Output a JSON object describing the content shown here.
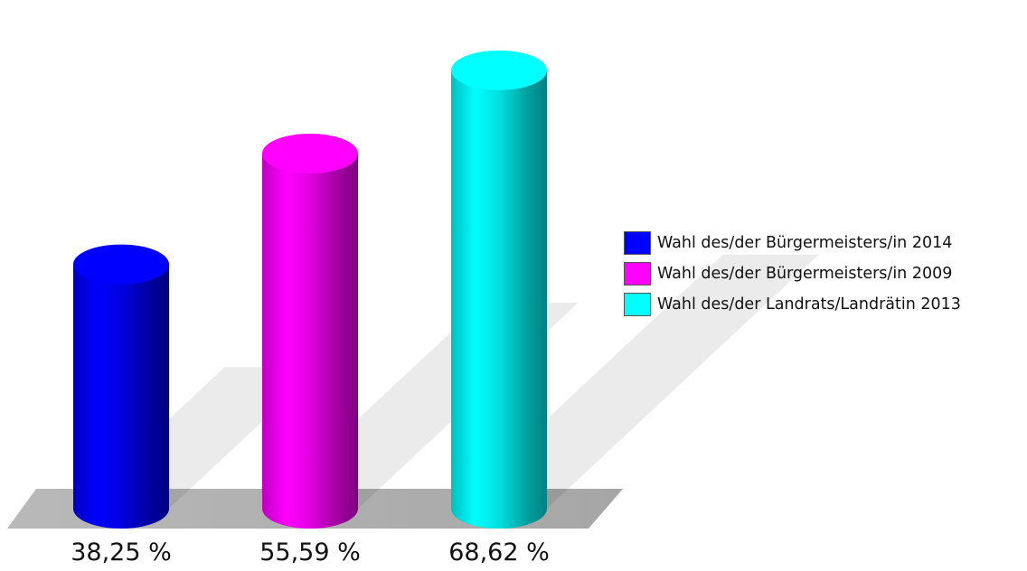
{
  "chart_data": {
    "type": "bar",
    "categories": [
      "Wahl des/der Bürgermeisters/in 2014",
      "Wahl des/der Bürgermeisters/in 2009",
      "Wahl des/der Landrats/Landrätin 2013"
    ],
    "values": [
      38.25,
      55.59,
      68.62
    ],
    "value_labels": [
      "38,25 %",
      "55,59 %",
      "68,62 %"
    ],
    "colors": [
      "#0000ff",
      "#ff00ff",
      "#00ffff"
    ],
    "title": "",
    "xlabel": "",
    "ylabel": "",
    "legend_position": "right",
    "grid": false,
    "style": "3d-cylinder"
  }
}
